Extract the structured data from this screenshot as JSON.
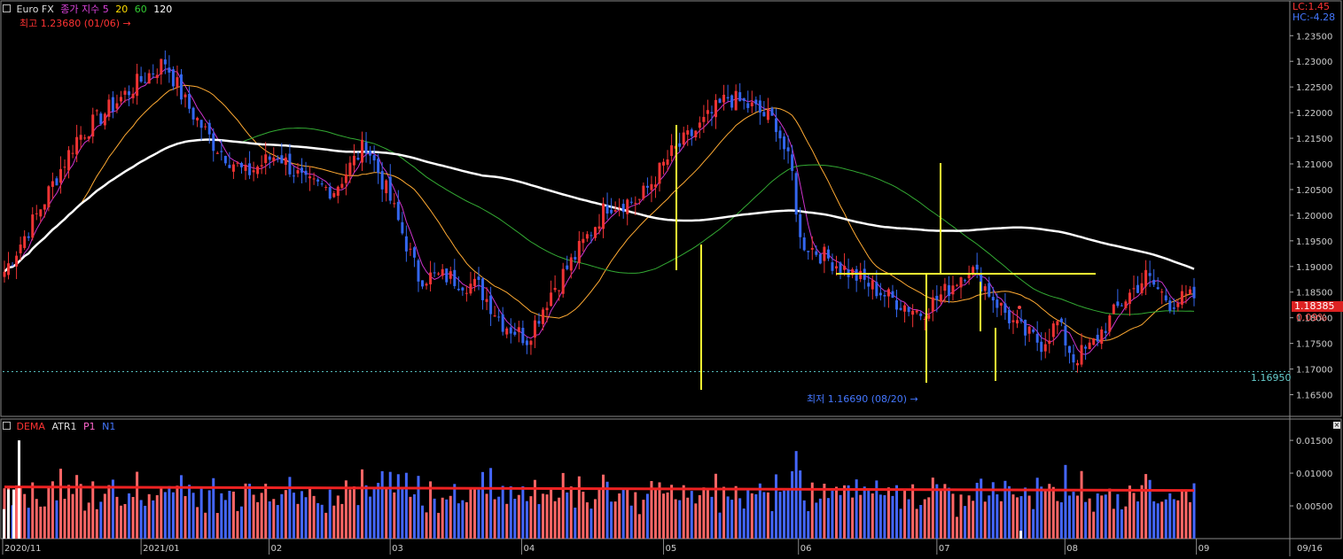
{
  "header": {
    "instrument": "Euro FX",
    "indicator_name": "종가 지수 5",
    "ma_periods": [
      "20",
      "60",
      "120"
    ],
    "ma_colors": [
      "#ffdd00",
      "#33cc33",
      "#ffffff"
    ],
    "lc_label": "LC:1.45",
    "hc_label": "HC:-4.28"
  },
  "annotations": {
    "high_label": "최고 1.23680 (01/06)",
    "low_label": "최저 1.16690 (08/20)",
    "dashed_level_label": "1.16950",
    "last_price_label": "1.18385",
    "last_change_label": "0.09%"
  },
  "lower_panel": {
    "legend": [
      {
        "label": "DEMA",
        "color": "#ff3333"
      },
      {
        "label": "ATR1",
        "color": "#dddddd"
      },
      {
        "label": "P1",
        "color": "#ff66cc"
      },
      {
        "label": "N1",
        "color": "#4477ff"
      }
    ]
  },
  "colors": {
    "background": "#000000",
    "up_candle": "#ee3333",
    "down_candle": "#3366ee",
    "sma5": "#cc33cc",
    "sma20": "#ffaa33",
    "sma60": "#33aa33",
    "sma120": "#ffffff",
    "lines": "#ffff33",
    "atr_up": "#ff6666",
    "atr_down": "#4466ff",
    "dema": "#ee2222"
  },
  "chart_data": [
    {
      "type": "candlestick",
      "title": "Euro FX",
      "x_tick_labels": [
        "2020/11",
        "2021/01",
        "02",
        "03",
        "04",
        "05",
        "06",
        "07",
        "08",
        "09",
        "09/16"
      ],
      "y_tick_labels": [
        "1.23500",
        "1.23000",
        "1.22500",
        "1.22000",
        "1.21500",
        "1.21000",
        "1.20500",
        "1.20000",
        "1.19500",
        "1.19000",
        "1.18500",
        "1.18000",
        "1.17500",
        "1.17000",
        "1.16500"
      ],
      "ylim": [
        1.1625,
        1.2385
      ],
      "anchors": {
        "points": [
          [
            0,
            1.189
          ],
          [
            8,
            1.2
          ],
          [
            18,
            1.215
          ],
          [
            32,
            1.225
          ],
          [
            40,
            1.23
          ],
          [
            45,
            1.222
          ],
          [
            52,
            1.214
          ],
          [
            60,
            1.208
          ],
          [
            68,
            1.212
          ],
          [
            75,
            1.206
          ],
          [
            82,
            1.205
          ],
          [
            90,
            1.214
          ],
          [
            96,
            1.203
          ],
          [
            103,
            1.188
          ],
          [
            110,
            1.188
          ],
          [
            118,
            1.186
          ],
          [
            124,
            1.179
          ],
          [
            130,
            1.176
          ],
          [
            136,
            1.185
          ],
          [
            142,
            1.192
          ],
          [
            150,
            1.202
          ],
          [
            158,
            1.203
          ],
          [
            166,
            1.212
          ],
          [
            174,
            1.218
          ],
          [
            180,
            1.223
          ],
          [
            186,
            1.221
          ],
          [
            192,
            1.218
          ],
          [
            196,
            1.208
          ],
          [
            198,
            1.195
          ],
          [
            204,
            1.192
          ],
          [
            212,
            1.188
          ],
          [
            220,
            1.184
          ],
          [
            228,
            1.181
          ],
          [
            234,
            1.185
          ],
          [
            240,
            1.19
          ],
          [
            246,
            1.184
          ],
          [
            252,
            1.178
          ],
          [
            258,
            1.175
          ],
          [
            262,
            1.179
          ],
          [
            266,
            1.172
          ],
          [
            270,
            1.174
          ],
          [
            278,
            1.183
          ],
          [
            284,
            1.188
          ],
          [
            290,
            1.183
          ],
          [
            296,
            1.184
          ]
        ],
        "n": 297,
        "seed": 7
      },
      "sma_periods": [
        5,
        20,
        60,
        120
      ],
      "high": {
        "value": 1.2368,
        "date": "01/06"
      },
      "low": {
        "value": 1.1669,
        "date": "08/20"
      },
      "reference_level": 1.1695,
      "last": 1.18385,
      "change_pct": "0.09%"
    },
    {
      "type": "bar",
      "title": "DEMA ATR1 P1 N1",
      "y_tick_labels": [
        "0.01500",
        "0.01000",
        "0.00500"
      ],
      "ylim": [
        0,
        0.0165
      ],
      "dema_level": 0.0079
    }
  ]
}
